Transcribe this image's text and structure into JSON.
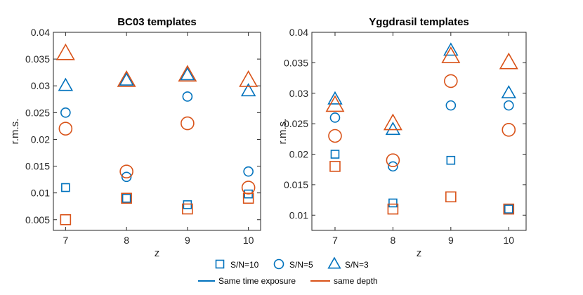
{
  "colors": {
    "same_time": "#0072BD",
    "same_depth": "#D95319"
  },
  "chart_data": [
    {
      "type": "scatter",
      "title": "BC03 templates",
      "xlabel": "z",
      "ylabel": "r.m.s.",
      "xlim": [
        6.8,
        10.2
      ],
      "ylim": [
        0.003,
        0.04
      ],
      "xticks": [
        7,
        8,
        9,
        10
      ],
      "xtick_labels": [
        "7",
        "8",
        "9",
        "10"
      ],
      "yticks": [
        0.005,
        0.01,
        0.015,
        0.02,
        0.025,
        0.03,
        0.035,
        0.04
      ],
      "ytick_labels": [
        "0.005",
        "0.01",
        "0.015",
        "0.02",
        "0.025",
        "0.03",
        "0.035",
        "0.04"
      ],
      "series": [
        {
          "name": "S/N=10",
          "marker": "square",
          "group": "Same time exposure",
          "x": [
            7.0,
            8.0,
            9.0,
            10.0
          ],
          "y": [
            0.011,
            0.009,
            0.0078,
            0.0098
          ]
        },
        {
          "name": "S/N=5",
          "marker": "circle",
          "group": "Same time exposure",
          "x": [
            7.0,
            8.0,
            9.0,
            10.0
          ],
          "y": [
            0.025,
            0.013,
            0.028,
            0.014
          ]
        },
        {
          "name": "S/N=3",
          "marker": "triangle",
          "group": "Same time exposure",
          "x": [
            7.0,
            8.0,
            9.0,
            10.0
          ],
          "y": [
            0.03,
            0.031,
            0.032,
            0.029
          ]
        },
        {
          "name": "S/N=10",
          "marker": "square",
          "group": "same depth",
          "x": [
            7.0,
            8.0,
            9.0,
            10.0
          ],
          "y": [
            0.005,
            0.009,
            0.007,
            0.009
          ]
        },
        {
          "name": "S/N=5",
          "marker": "circle",
          "group": "same depth",
          "x": [
            7.0,
            8.0,
            9.0,
            10.0
          ],
          "y": [
            0.022,
            0.014,
            0.023,
            0.011
          ]
        },
        {
          "name": "S/N=3",
          "marker": "triangle",
          "group": "same depth",
          "x": [
            7.0,
            8.0,
            9.0,
            10.0
          ],
          "y": [
            0.036,
            0.031,
            0.032,
            0.031
          ]
        }
      ]
    },
    {
      "type": "scatter",
      "title": "Yggdrasil templates",
      "xlabel": "z",
      "ylabel": "r.m.s.",
      "xlim": [
        6.6,
        10.3
      ],
      "ylim": [
        0.0075,
        0.04
      ],
      "xticks": [
        7,
        8,
        9,
        10
      ],
      "xtick_labels": [
        "7",
        "8",
        "9",
        "10"
      ],
      "yticks": [
        0.01,
        0.015,
        0.02,
        0.025,
        0.03,
        0.035,
        0.04
      ],
      "ytick_labels": [
        "0.01",
        "0.015",
        "0.02",
        "0.025",
        "0.03",
        "0.035",
        "0.04"
      ],
      "series": [
        {
          "name": "S/N=10",
          "marker": "square",
          "group": "Same time exposure",
          "x": [
            7.0,
            8.0,
            9.0,
            10.0
          ],
          "y": [
            0.02,
            0.012,
            0.019,
            0.011
          ]
        },
        {
          "name": "S/N=5",
          "marker": "circle",
          "group": "Same time exposure",
          "x": [
            7.0,
            8.0,
            9.0,
            10.0
          ],
          "y": [
            0.026,
            0.018,
            0.028,
            0.028
          ]
        },
        {
          "name": "S/N=3",
          "marker": "triangle",
          "group": "Same time exposure",
          "x": [
            7.0,
            8.0,
            9.0,
            10.0
          ],
          "y": [
            0.029,
            0.024,
            0.037,
            0.03
          ]
        },
        {
          "name": "S/N=10",
          "marker": "square",
          "group": "same depth",
          "x": [
            7.0,
            8.0,
            9.0,
            10.0
          ],
          "y": [
            0.018,
            0.011,
            0.013,
            0.011
          ]
        },
        {
          "name": "S/N=5",
          "marker": "circle",
          "group": "same depth",
          "x": [
            7.0,
            8.0,
            9.0,
            10.0
          ],
          "y": [
            0.023,
            0.019,
            0.032,
            0.024
          ]
        },
        {
          "name": "S/N=3",
          "marker": "triangle",
          "group": "same depth",
          "x": [
            7.0,
            8.0,
            9.0,
            10.0
          ],
          "y": [
            0.028,
            0.025,
            0.036,
            0.035
          ]
        }
      ]
    }
  ],
  "legend": {
    "markers": [
      {
        "label": "S/N=10",
        "marker": "square"
      },
      {
        "label": "S/N=5",
        "marker": "circle"
      },
      {
        "label": "S/N=3",
        "marker": "triangle"
      }
    ],
    "lines": [
      {
        "label": "Same time exposure",
        "color_key": "same_time"
      },
      {
        "label": "same depth",
        "color_key": "same_depth"
      }
    ]
  }
}
